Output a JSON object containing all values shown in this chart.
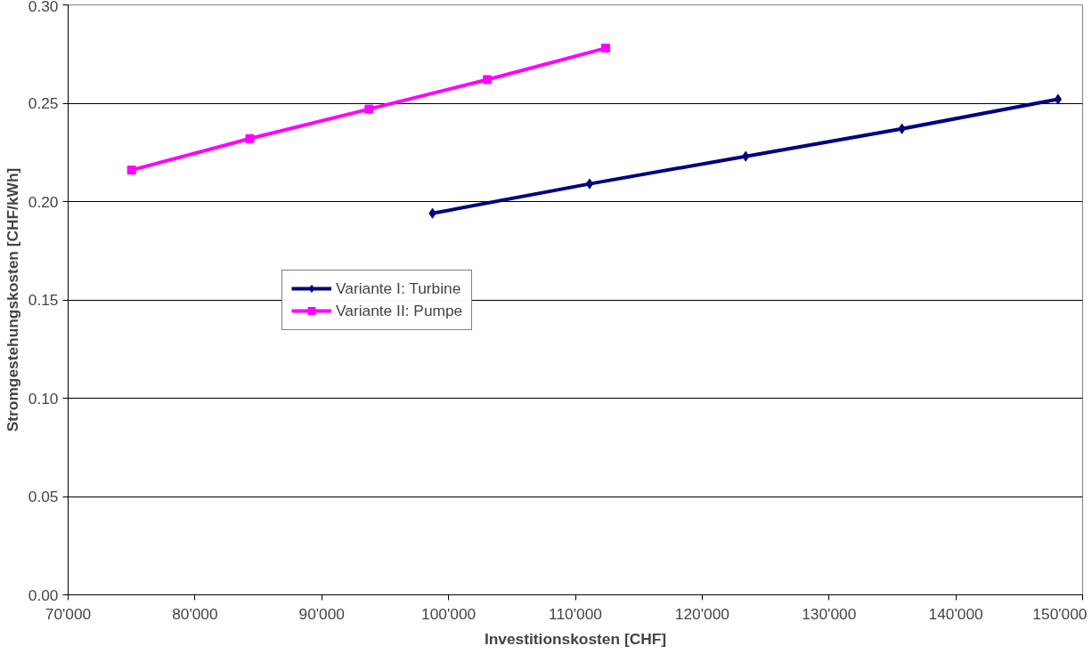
{
  "chart_data": {
    "type": "line",
    "xlabel": "Investitionskosten [CHF]",
    "ylabel": "Stromgestehungskosten [CHF/kWh]",
    "xlim": [
      70000,
      150000
    ],
    "ylim": [
      0,
      0.3
    ],
    "xticks": [
      {
        "value": 70000,
        "label": "70'000"
      },
      {
        "value": 80000,
        "label": "80'000"
      },
      {
        "value": 90000,
        "label": "90'000"
      },
      {
        "value": 100000,
        "label": "100'000"
      },
      {
        "value": 110000,
        "label": "110'000"
      },
      {
        "value": 120000,
        "label": "120'000"
      },
      {
        "value": 130000,
        "label": "130'000"
      },
      {
        "value": 140000,
        "label": "140'000"
      },
      {
        "value": 150000,
        "label": "150'000"
      }
    ],
    "yticks": [
      {
        "value": 0,
        "label": "0.00"
      },
      {
        "value": 0.05,
        "label": "0.05"
      },
      {
        "value": 0.1,
        "label": "0.10"
      },
      {
        "value": 0.15,
        "label": "0.15"
      },
      {
        "value": 0.2,
        "label": "0.20"
      },
      {
        "value": 0.25,
        "label": "0.25"
      },
      {
        "value": 0.3,
        "label": "0.30"
      }
    ],
    "grid": "y",
    "legend": "center left",
    "series": [
      {
        "name": "Variante I: Turbine",
        "color": "#000080",
        "marker": "diamond",
        "x": [
          98730,
          111120,
          123430,
          135750,
          148060
        ],
        "values": [
          0.194,
          0.209,
          0.223,
          0.237,
          0.252
        ]
      },
      {
        "name": "Variante II: Pumpe",
        "color": "#ff00ff",
        "marker": "square",
        "x": [
          75000,
          84330,
          93730,
          103060,
          112390
        ],
        "values": [
          0.216,
          0.232,
          0.247,
          0.262,
          0.278
        ]
      }
    ]
  }
}
